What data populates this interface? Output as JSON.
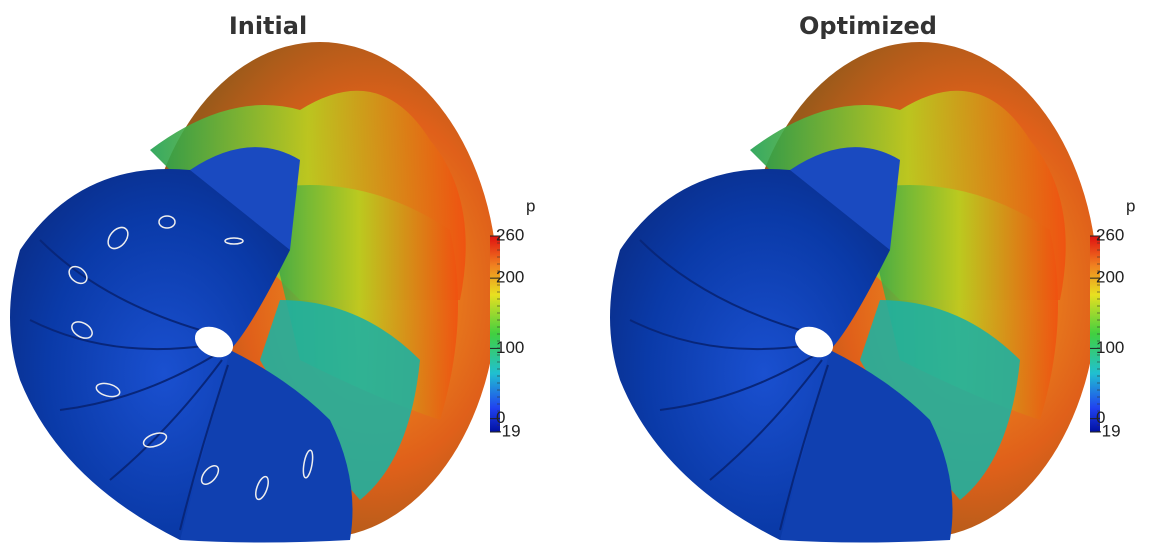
{
  "panels": [
    {
      "title": "Initial",
      "colorbar": {
        "label": "p",
        "lim": [
          -19,
          260
        ],
        "ticks": [
          260,
          200,
          100,
          0,
          -19
        ]
      }
    },
    {
      "title": "Optimized",
      "colorbar": {
        "label": "p",
        "lim": [
          -19,
          260
        ],
        "ticks": [
          260,
          200,
          100,
          0,
          -19
        ]
      }
    }
  ]
}
